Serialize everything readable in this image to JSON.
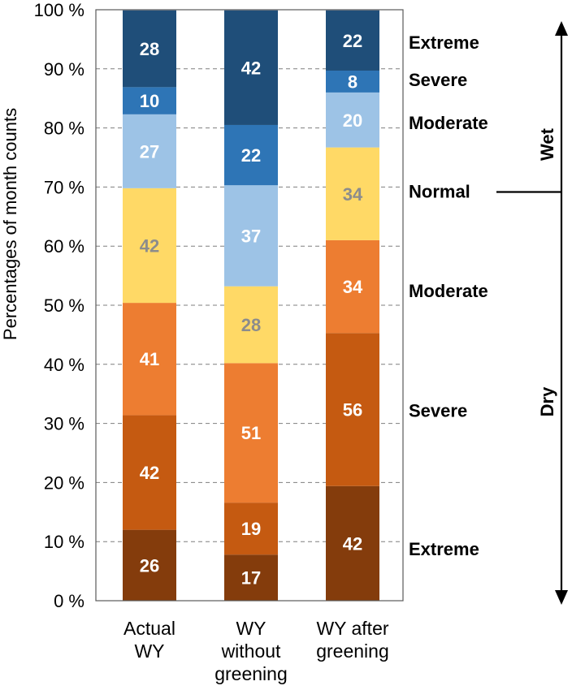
{
  "chart_data": {
    "type": "bar",
    "stacked": true,
    "ylabel": "Percentages of month counts",
    "ylim": [
      0,
      100
    ],
    "yticks": [
      "0 %",
      "10 %",
      "20 %",
      "30 %",
      "40 %",
      "50 %",
      "60 %",
      "70 %",
      "80 %",
      "90 %",
      "100 %"
    ],
    "grid": true,
    "categories": [
      [
        "Actual",
        "WY"
      ],
      [
        "WY",
        "without",
        "greening"
      ],
      [
        "WY after",
        "greening"
      ]
    ],
    "series": [
      {
        "name": "Extreme",
        "group": "Dry",
        "color": "#843C0C",
        "label_color": "#ffffff",
        "counts": [
          26,
          17,
          42
        ],
        "values": [
          12.0,
          7.8,
          19.4
        ]
      },
      {
        "name": "Severe",
        "group": "Dry",
        "color": "#C55A11",
        "label_color": "#ffffff",
        "counts": [
          42,
          19,
          56
        ],
        "values": [
          19.4,
          8.8,
          25.9
        ]
      },
      {
        "name": "Moderate",
        "group": "Dry",
        "color": "#ED7D31",
        "label_color": "#ffffff",
        "counts": [
          41,
          51,
          34
        ],
        "values": [
          19.0,
          23.6,
          15.7
        ]
      },
      {
        "name": "Normal",
        "group": "Normal",
        "color": "#FFD966",
        "label_color": "#8C8C8C",
        "counts": [
          42,
          28,
          34
        ],
        "values": [
          19.4,
          13.0,
          15.7
        ]
      },
      {
        "name": "Moderate",
        "group": "Wet",
        "color": "#9DC3E6",
        "label_color": "#ffffff",
        "counts": [
          27,
          37,
          20
        ],
        "values": [
          12.5,
          17.1,
          9.3
        ]
      },
      {
        "name": "Severe",
        "group": "Wet",
        "color": "#2E75B6",
        "label_color": "#ffffff",
        "counts": [
          10,
          22,
          8
        ],
        "values": [
          4.6,
          10.2,
          3.7
        ]
      },
      {
        "name": "Extreme",
        "group": "Wet",
        "color": "#1F4E79",
        "label_color": "#ffffff",
        "counts": [
          28,
          42,
          22
        ],
        "values": [
          13.0,
          19.4,
          10.2
        ]
      }
    ],
    "side_labels": [
      {
        "text": "Extreme",
        "value": 94.5
      },
      {
        "text": "Severe",
        "value": 88.2
      },
      {
        "text": "Moderate",
        "value": 80.9
      },
      {
        "text": "Normal",
        "value": 69.3
      },
      {
        "text": "Moderate",
        "value": 52.5
      },
      {
        "text": "Severe",
        "value": 32.2
      },
      {
        "text": "Extreme",
        "value": 8.8
      }
    ],
    "arrow_labels": {
      "wet": "Wet",
      "dry": "Dry"
    }
  }
}
